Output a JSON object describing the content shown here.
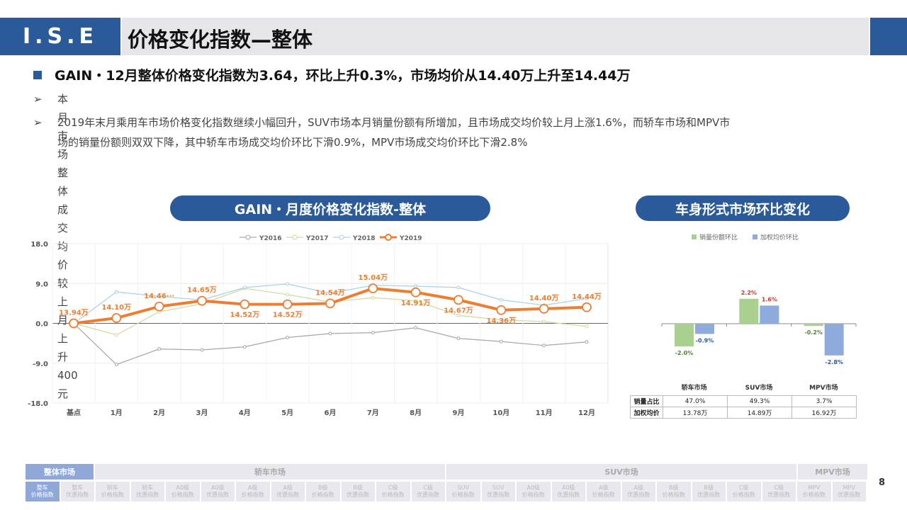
{
  "header": {
    "logo": "I.S.E",
    "title": "价格变化指数—整体"
  },
  "headline": "GAIN・12月整体价格变化指数为3.64，环比上升0.3%，市场均价从14.40万上升至14.44万",
  "bullets": [
    {
      "arrow": "➢",
      "line1": "本月市场整体成交均价较上月上升400元",
      "line2": ""
    },
    {
      "arrow": "➢",
      "line1": "2019年末月乘用车市场价格变化指数继续小幅回升，SUV市场本月销量份额有所增加，且市场成交均价较上月上涨1.6%，而轿车市场和MPV市",
      "line2": "场的销量份额则双双下降，其中轿车市场成交均价环比下滑0.9%，MPV市场成交均价环比下滑2.8%"
    }
  ],
  "left_pill": "GAIN・月度价格变化指数-整体",
  "right_pill": "车身形式市场环比变化",
  "chart_data": [
    {
      "type": "line",
      "title": "",
      "categories": [
        "基点",
        "1月",
        "2月",
        "3月",
        "4月",
        "5月",
        "6月",
        "7月",
        "8月",
        "9月",
        "10月",
        "11月",
        "12月"
      ],
      "ylim": [
        -18.0,
        18.0
      ],
      "yticks": [
        "18.0",
        "9.0",
        "0.0",
        "-9.0",
        "-18.0"
      ],
      "grid": true,
      "legend": "top",
      "series": [
        {
          "name": "Y2016",
          "color": "#a6a6a6",
          "values": [
            0,
            -9.3,
            -5.8,
            -6.0,
            -5.3,
            -3.2,
            -2.3,
            -2.1,
            -1.0,
            -3.4,
            -4.1,
            -5.0,
            -4.2
          ]
        },
        {
          "name": "Y2017",
          "color": "#c9dca0",
          "values": [
            0,
            -2.6,
            2.6,
            4.4,
            7.9,
            6.5,
            4.8,
            5.8,
            5.1,
            1.8,
            0.8,
            0.4,
            -0.7
          ]
        },
        {
          "name": "Y2018",
          "color": "#a8d0ea",
          "values": [
            0,
            7.1,
            6.1,
            5.3,
            8.1,
            8.9,
            6.8,
            8.6,
            8.4,
            8.1,
            5.3,
            4.1,
            5.6
          ]
        },
        {
          "name": "Y2019",
          "color": "#ed7d31",
          "values": [
            0,
            1.2,
            3.8,
            5.1,
            4.3,
            4.3,
            4.5,
            7.9,
            7.0,
            5.3,
            3.0,
            3.3,
            3.64
          ],
          "labels": [
            "13.94万",
            "14.10万",
            "14.46···",
            "14.65万",
            "14.52万",
            "14.52万",
            "14.54万",
            "15.04万",
            "14.91万",
            "14.67万",
            "14.36万",
            "14.40万",
            "14.44万"
          ]
        }
      ]
    },
    {
      "type": "bar",
      "title": "",
      "categories": [
        "轿车市场",
        "SUV市场",
        "MPV市场"
      ],
      "legend": "top",
      "series": [
        {
          "name": "销量份额环比",
          "color": "#a9d08e",
          "values": [
            -2.0,
            2.2,
            -0.2
          ],
          "labels": [
            "-2.0%",
            "2.2%",
            "-0.2%"
          ]
        },
        {
          "name": "加权均价环比",
          "color": "#8faadc",
          "values": [
            -0.9,
            1.6,
            -2.8
          ],
          "labels": [
            "-0.9%",
            "1.6%",
            "-2.8%"
          ]
        }
      ],
      "table": {
        "rows": [
          {
            "label": "销量占比",
            "values": [
              "47.0%",
              "49.3%",
              "3.7%"
            ]
          },
          {
            "label": "加权均价",
            "values": [
              "13.78万",
              "14.89万",
              "16.92万"
            ]
          }
        ]
      }
    }
  ],
  "nav": {
    "categories": [
      {
        "label": "整体市场",
        "active": true
      },
      {
        "label": "轿车市场",
        "active": false
      },
      {
        "label": "SUV市场",
        "active": false
      },
      {
        "label": "MPV市场",
        "active": false
      }
    ],
    "subtabs": [
      "整车\n价格指数",
      "整车\n优惠指数",
      "轿车\n价格指数",
      "轿车\n优惠指数",
      "A0级\n价格指数",
      "A0级\n优惠指数",
      "A级\n价格指数",
      "A级\n优惠指数",
      "B级\n价格指数",
      "B级\n优惠指数",
      "C级\n价格指数",
      "C级\n优惠指数",
      "SUV\n价格指数",
      "SUV\n优惠指数",
      "A0级\n价格指数",
      "A0级\n优惠指数",
      "A级\n价格指数",
      "A级\n优惠指数",
      "B级\n价格指数",
      "B级\n优惠指数",
      "C级\n价格指数",
      "C级\n优惠指数",
      "MPV\n价格指数",
      "MPV\n优惠指数"
    ]
  },
  "page_number": "8"
}
